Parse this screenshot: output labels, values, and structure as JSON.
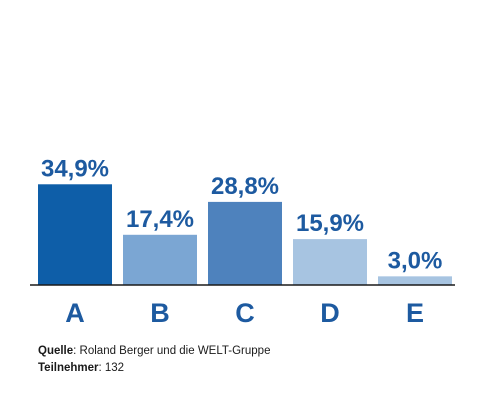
{
  "chart_data": {
    "type": "bar",
    "categories": [
      "A",
      "B",
      "C",
      "D",
      "E"
    ],
    "values": [
      34.9,
      17.4,
      28.8,
      15.9,
      3.0
    ],
    "value_labels": [
      "34,9%",
      "17,4%",
      "28,8%",
      "15,9%",
      "3,0%"
    ],
    "colors": [
      "#0e5ea8",
      "#7ba6d3",
      "#4e82bd",
      "#a7c4e1",
      "#a7c4e1"
    ],
    "label_color": "#1d5aa0",
    "axis_color": "#1a1a1a",
    "grid": false,
    "legend": "none",
    "ylim": [
      0,
      35
    ]
  },
  "footer": {
    "source_label": "Quelle",
    "source_text": ": Roland Berger und die WELT-Gruppe",
    "participants_label": "Teilnehmer",
    "participants_text": ": 132"
  }
}
